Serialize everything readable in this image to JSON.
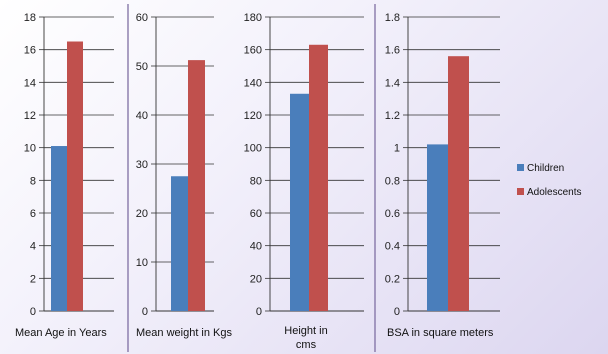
{
  "chart_data": [
    {
      "type": "bar",
      "xlabel": "Mean Age in Years",
      "ylim": [
        0,
        18
      ],
      "yticks": [
        0,
        2,
        4,
        6,
        8,
        10,
        12,
        14,
        16,
        18
      ],
      "series": [
        {
          "name": "Children",
          "values": [
            10.1
          ]
        },
        {
          "name": "Adolescents",
          "values": [
            16.5
          ]
        }
      ]
    },
    {
      "type": "bar",
      "xlabel": "Mean weight in Kgs",
      "ylim": [
        0,
        60
      ],
      "yticks": [
        0,
        10,
        20,
        30,
        40,
        50,
        60
      ],
      "series": [
        {
          "name": "Children",
          "values": [
            27.5
          ]
        },
        {
          "name": "Adolescents",
          "values": [
            51.2
          ]
        }
      ]
    },
    {
      "type": "bar",
      "xlabel": "Height in cms",
      "ylim": [
        0,
        180
      ],
      "yticks": [
        0,
        20,
        40,
        60,
        80,
        100,
        120,
        140,
        160,
        180
      ],
      "series": [
        {
          "name": "Children",
          "values": [
            133
          ]
        },
        {
          "name": "Adolescents",
          "values": [
            163
          ]
        }
      ]
    },
    {
      "type": "bar",
      "xlabel": "BSA in square meters",
      "ylim": [
        0,
        1.8
      ],
      "yticks": [
        "0",
        "0.2",
        "0.4",
        "0.6",
        "0.8",
        "1",
        "1.2",
        "1.4",
        "1.6",
        "1.8"
      ],
      "series": [
        {
          "name": "Children",
          "values": [
            1.02
          ]
        },
        {
          "name": "Adolescents",
          "values": [
            1.56
          ]
        }
      ]
    }
  ],
  "legend": [
    {
      "label": "Children",
      "color": "#4a7ebb"
    },
    {
      "label": "Adolescents",
      "color": "#c0504d"
    }
  ],
  "colors": {
    "children": "#4a7ebb",
    "adolescents": "#c0504d",
    "divider": "#7f6fa3",
    "grid": "#333333"
  }
}
